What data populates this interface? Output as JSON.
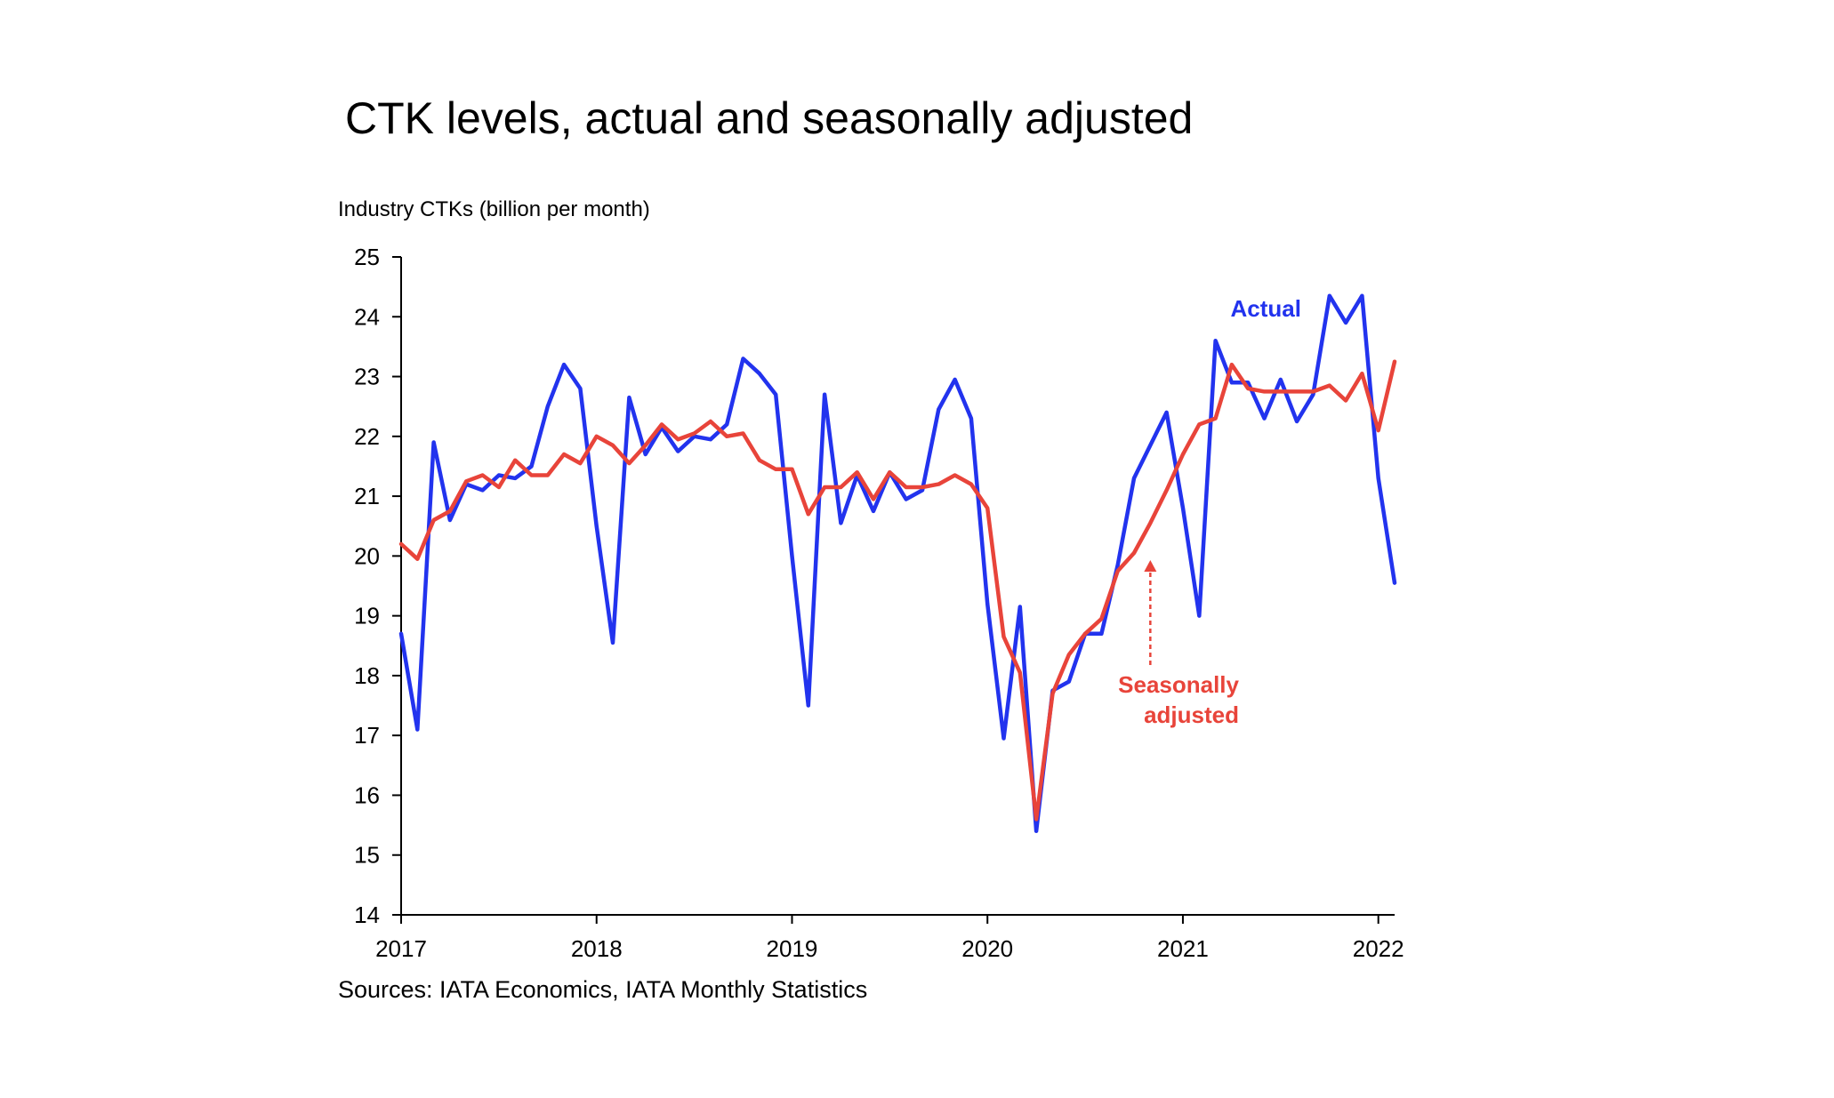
{
  "chart_data": {
    "type": "line",
    "title": "CTK levels, actual and seasonally adjusted",
    "ylabel": "Industry CTKs (billion per month)",
    "xlabel": "",
    "source": "Sources: IATA Economics, IATA Monthly Statistics",
    "ylim": [
      14,
      25
    ],
    "yticks": [
      "14",
      "15",
      "16",
      "17",
      "18",
      "19",
      "20",
      "21",
      "22",
      "23",
      "24",
      "25"
    ],
    "xlim": [
      "2017-01",
      "2022-02"
    ],
    "xticks": [
      "2017",
      "2018",
      "2019",
      "2020",
      "2021",
      "2022"
    ],
    "x": [
      "2017-01",
      "2017-02",
      "2017-03",
      "2017-04",
      "2017-05",
      "2017-06",
      "2017-07",
      "2017-08",
      "2017-09",
      "2017-10",
      "2017-11",
      "2017-12",
      "2018-01",
      "2018-02",
      "2018-03",
      "2018-04",
      "2018-05",
      "2018-06",
      "2018-07",
      "2018-08",
      "2018-09",
      "2018-10",
      "2018-11",
      "2018-12",
      "2019-01",
      "2019-02",
      "2019-03",
      "2019-04",
      "2019-05",
      "2019-06",
      "2019-07",
      "2019-08",
      "2019-09",
      "2019-10",
      "2019-11",
      "2019-12",
      "2020-01",
      "2020-02",
      "2020-03",
      "2020-04",
      "2020-05",
      "2020-06",
      "2020-07",
      "2020-08",
      "2020-09",
      "2020-10",
      "2020-11",
      "2020-12",
      "2021-01",
      "2021-02",
      "2021-03",
      "2021-04",
      "2021-05",
      "2021-06",
      "2021-07",
      "2021-08",
      "2021-09",
      "2021-10",
      "2021-11",
      "2021-12",
      "2022-01",
      "2022-02"
    ],
    "grid": false,
    "series": [
      {
        "name": "Actual",
        "color": "#2233ee",
        "values": [
          18.7,
          17.1,
          21.9,
          20.6,
          21.2,
          21.1,
          21.35,
          21.3,
          21.5,
          22.5,
          23.2,
          22.8,
          20.5,
          18.55,
          22.65,
          21.7,
          22.15,
          21.75,
          22.0,
          21.95,
          22.2,
          23.3,
          23.05,
          22.7,
          20.0,
          17.5,
          22.7,
          20.55,
          21.35,
          20.75,
          21.4,
          20.95,
          21.1,
          22.45,
          22.95,
          22.3,
          19.2,
          16.95,
          19.15,
          15.4,
          17.75,
          17.9,
          18.7,
          18.7,
          19.85,
          21.3,
          21.85,
          22.4,
          20.8,
          19.0,
          23.6,
          22.9,
          22.9,
          22.3,
          22.95,
          22.25,
          22.7,
          24.35,
          23.9,
          24.35,
          21.3,
          19.55
        ]
      },
      {
        "name": "Seasonally adjusted",
        "color": "#e8443a",
        "values": [
          20.2,
          19.95,
          20.6,
          20.75,
          21.25,
          21.35,
          21.15,
          21.6,
          21.35,
          21.35,
          21.7,
          21.55,
          22.0,
          21.85,
          21.55,
          21.85,
          22.2,
          21.95,
          22.05,
          22.25,
          22.0,
          22.05,
          21.6,
          21.45,
          21.45,
          20.7,
          21.15,
          21.15,
          21.4,
          20.95,
          21.4,
          21.15,
          21.15,
          21.2,
          21.35,
          21.2,
          20.8,
          18.65,
          18.05,
          15.6,
          17.7,
          18.35,
          18.7,
          18.95,
          19.75,
          20.05,
          20.55,
          21.1,
          21.7,
          22.2,
          22.3,
          23.2,
          22.8,
          22.75,
          22.75,
          22.75,
          22.75,
          22.85,
          22.6,
          23.05,
          22.1,
          23.25
        ]
      }
    ],
    "annotations": [
      {
        "text": "Actual",
        "series": "Actual",
        "color": "#2233ee"
      },
      {
        "text": "Seasonally",
        "text2": "adjusted",
        "series": "Seasonally adjusted",
        "color": "#e8443a",
        "arrow_to_x": "2020-11",
        "arrow_to_y": 20.05
      }
    ]
  }
}
